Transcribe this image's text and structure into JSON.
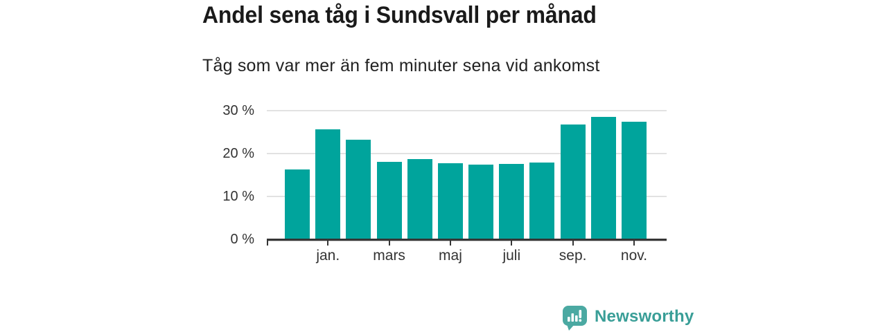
{
  "chart_data": {
    "type": "bar",
    "title": "Andel sena tåg i Sundsvall per månad",
    "subtitle": "Tåg som var mer än fem minuter sena vid ankomst",
    "unit": "%",
    "values": [
      16.3,
      25.7,
      23.3,
      18.1,
      18.7,
      17.8,
      17.4,
      17.6,
      17.9,
      26.8,
      28.6,
      27.4
    ],
    "x_axis": {
      "ticks": [
        {
          "bar_index": 1,
          "label": "jan."
        },
        {
          "bar_index": 3,
          "label": "mars"
        },
        {
          "bar_index": 5,
          "label": "maj"
        },
        {
          "bar_index": 7,
          "label": "juli"
        },
        {
          "bar_index": 9,
          "label": "sep."
        },
        {
          "bar_index": 11,
          "label": "nov."
        }
      ]
    },
    "y_axis": {
      "range": [
        0,
        30
      ],
      "ticks": [
        {
          "value": 0,
          "label": "0 %"
        },
        {
          "value": 10,
          "label": "10 %"
        },
        {
          "value": 20,
          "label": "20 %"
        },
        {
          "value": 30,
          "label": "30 %"
        }
      ]
    },
    "grid": true,
    "legend": null,
    "bar_color": "#00a49c",
    "gridline_color": "#e2e2e2",
    "axis_color": "#363636"
  },
  "footer": {
    "brand": "Newsworthy",
    "brand_color": "#399e97",
    "icon": "newsworthy-speech-bubble-chart-icon",
    "icon_color": "#4ba9a2"
  }
}
